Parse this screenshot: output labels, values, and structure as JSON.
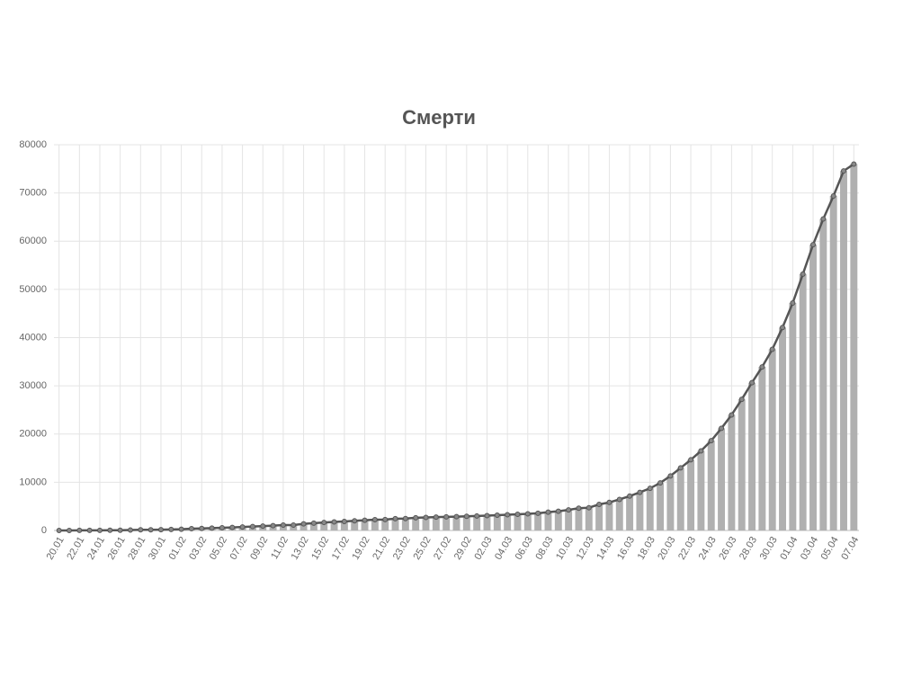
{
  "chart_data": {
    "type": "bar",
    "title": "Смерти",
    "categories": [
      "20.01",
      null,
      "22.01",
      null,
      "24.01",
      null,
      "26.01",
      null,
      "28.01",
      null,
      "30.01",
      null,
      "01.02",
      null,
      "03.02",
      null,
      "05.02",
      null,
      "07.02",
      null,
      "09.02",
      null,
      "11.02",
      null,
      "13.02",
      null,
      "15.02",
      null,
      "17.02",
      null,
      "19.02",
      null,
      "21.02",
      null,
      "23.02",
      null,
      "25.02",
      null,
      "27.02",
      null,
      "29.02",
      null,
      "02.03",
      null,
      "04.03",
      null,
      "06.03",
      null,
      "08.03",
      null,
      "10.03",
      null,
      "12.03",
      null,
      "14.03",
      null,
      "16.03",
      null,
      "18.03",
      null,
      "20.03",
      null,
      "22.03",
      null,
      "24.03",
      null,
      "26.03",
      null,
      "28.03",
      null,
      "30.03",
      null,
      "01.04",
      null,
      "03.04",
      null,
      "05.04",
      null,
      "07.04"
    ],
    "values": [
      6,
      9,
      17,
      18,
      26,
      42,
      56,
      82,
      131,
      133,
      171,
      213,
      259,
      362,
      426,
      492,
      564,
      634,
      719,
      806,
      906,
      1013,
      1113,
      1118,
      1371,
      1523,
      1666,
      1770,
      1868,
      2007,
      2122,
      2247,
      2251,
      2458,
      2469,
      2629,
      2708,
      2770,
      2814,
      2872,
      2941,
      2996,
      3085,
      3160,
      3254,
      3348,
      3460,
      3558,
      3802,
      3988,
      4262,
      4615,
      4720,
      5404,
      5819,
      6440,
      7126,
      7905,
      8733,
      9867,
      11299,
      12973,
      14651,
      16505,
      18625,
      21181,
      23970,
      27198,
      30652,
      33925,
      37582,
      42107,
      47180,
      53178,
      59273,
      64606,
      69374,
      74565,
      76000
    ],
    "color": "#b0b0b0",
    "line_color": "#555555",
    "ylim": [
      0,
      80000
    ],
    "yticks": [
      0,
      10000,
      20000,
      30000,
      40000,
      50000,
      60000,
      70000,
      80000
    ],
    "grid": true
  }
}
